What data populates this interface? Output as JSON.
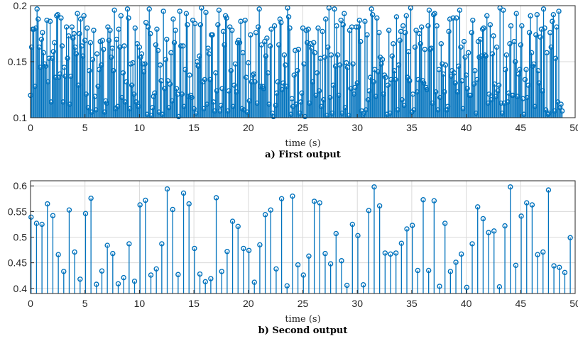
{
  "figure": {
    "colors": {
      "stem": "#0072BD",
      "axis": "#262626",
      "grid": "#d9d9d9",
      "background": "#ffffff"
    }
  },
  "chart_data": [
    {
      "type": "stem",
      "caption": "a) First output",
      "xlabel": "time (s)",
      "ylabel": "",
      "xlim": [
        0,
        50
      ],
      "ylim": [
        0.1,
        0.2
      ],
      "xticks": [
        0,
        5,
        10,
        15,
        20,
        25,
        30,
        35,
        40,
        45,
        50
      ],
      "yticks": [
        0.1,
        0.15,
        0.2
      ],
      "ytick_labels": [
        "0.1",
        "0.15",
        "0.2"
      ],
      "grid": true,
      "sample_time": 0.1,
      "y": [
        0.12,
        0.163,
        0.179,
        0.179,
        0.128,
        0.18,
        0.197,
        0.188,
        0.163,
        0.145,
        0.17,
        0.176,
        0.158,
        0.148,
        0.146,
        0.187,
        0.132,
        0.153,
        0.186,
        0.114,
        0.153,
        0.159,
        0.167,
        0.136,
        0.191,
        0.192,
        0.136,
        0.139,
        0.189,
        0.164,
        0.114,
        0.145,
        0.137,
        0.181,
        0.153,
        0.173,
        0.112,
        0.137,
        0.181,
        0.171,
        0.175,
        0.163,
        0.157,
        0.193,
        0.129,
        0.175,
        0.188,
        0.164,
        0.155,
        0.191,
        0.169,
        0.121,
        0.18,
        0.109,
        0.142,
        0.167,
        0.105,
        0.152,
        0.178,
        0.119,
        0.107,
        0.157,
        0.128,
        0.143,
        0.168,
        0.147,
        0.169,
        0.161,
        0.105,
        0.115,
        0.113,
        0.181,
        0.169,
        0.178,
        0.154,
        0.162,
        0.142,
        0.196,
        0.108,
        0.17,
        0.11,
        0.179,
        0.163,
        0.191,
        0.118,
        0.14,
        0.164,
        0.114,
        0.132,
        0.197,
        0.189,
        0.108,
        0.148,
        0.129,
        0.149,
        0.121,
        0.18,
        0.114,
        0.166,
        0.11,
        0.163,
        0.154,
        0.157,
        0.148,
        0.141,
        0.148,
        0.185,
        0.103,
        0.181,
        0.197,
        0.175,
        0.102,
        0.109,
        0.119,
        0.122,
        0.165,
        0.179,
        0.16,
        0.105,
        0.147,
        0.133,
        0.103,
        0.195,
        0.126,
        0.152,
        0.17,
        0.133,
        0.109,
        0.13,
        0.158,
        0.115,
        0.188,
        0.167,
        0.178,
        0.126,
        0.121,
        0.101,
        0.195,
        0.164,
        0.121,
        0.164,
        0.11,
        0.143,
        0.193,
        0.183,
        0.119,
        0.138,
        0.12,
        0.118,
        0.187,
        0.108,
        0.184,
        0.104,
        0.15,
        0.146,
        0.155,
        0.183,
        0.198,
        0.132,
        0.108,
        0.134,
        0.194,
        0.112,
        0.162,
        0.157,
        0.134,
        0.174,
        0.174,
        0.114,
        0.106,
        0.14,
        0.124,
        0.183,
        0.196,
        0.106,
        0.111,
        0.126,
        0.177,
        0.165,
        0.191,
        0.189,
        0.106,
        0.124,
        0.181,
        0.142,
        0.178,
        0.11,
        0.129,
        0.148,
        0.123,
        0.167,
        0.169,
        0.167,
        0.186,
        0.108,
        0.158,
        0.107,
        0.187,
        0.136,
        0.105,
        0.149,
        0.115,
        0.174,
        0.132,
        0.138,
        0.139,
        0.132,
        0.176,
        0.113,
        0.181,
        0.197,
        0.128,
        0.165,
        0.128,
        0.126,
        0.168,
        0.155,
        0.171,
        0.14,
        0.112,
        0.164,
        0.179,
        0.104,
        0.101,
        0.182,
        0.111,
        0.122,
        0.132,
        0.165,
        0.188,
        0.185,
        0.125,
        0.131,
        0.156,
        0.147,
        0.128,
        0.198,
        0.19,
        0.18,
        0.103,
        0.117,
        0.11,
        0.138,
        0.16,
        0.112,
        0.142,
        0.161,
        0.104,
        0.114,
        0.122,
        0.18,
        0.148,
        0.101,
        0.178,
        0.167,
        0.179,
        0.113,
        0.166,
        0.162,
        0.132,
        0.167,
        0.158,
        0.12,
        0.14,
        0.18,
        0.124,
        0.153,
        0.11,
        0.177,
        0.116,
        0.154,
        0.188,
        0.102,
        0.163,
        0.198,
        0.118,
        0.156,
        0.104,
        0.129,
        0.197,
        0.146,
        0.182,
        0.156,
        0.12,
        0.147,
        0.187,
        0.104,
        0.183,
        0.193,
        0.109,
        0.149,
        0.145,
        0.102,
        0.178,
        0.126,
        0.181,
        0.148,
        0.121,
        0.127,
        0.181,
        0.131,
        0.181,
        0.187,
        0.168,
        0.106,
        0.102,
        0.104,
        0.186,
        0.107,
        0.174,
        0.116,
        0.124,
        0.136,
        0.197,
        0.192,
        0.132,
        0.143,
        0.119,
        0.189,
        0.141,
        0.176,
        0.154,
        0.148,
        0.152,
        0.121,
        0.138,
        0.136,
        0.103,
        0.129,
        0.178,
        0.104,
        0.134,
        0.155,
        0.166,
        0.142,
        0.134,
        0.19,
        0.107,
        0.147,
        0.169,
        0.177,
        0.116,
        0.182,
        0.111,
        0.176,
        0.191,
        0.136,
        0.159,
        0.133,
        0.198,
        0.105,
        0.121,
        0.107,
        0.163,
        0.178,
        0.123,
        0.134,
        0.175,
        0.166,
        0.181,
        0.133,
        0.131,
        0.161,
        0.127,
        0.125,
        0.182,
        0.196,
        0.161,
        0.162,
        0.113,
        0.192,
        0.193,
        0.123,
        0.182,
        0.107,
        0.143,
        0.118,
        0.166,
        0.148,
        0.139,
        0.123,
        0.147,
        0.107,
        0.11,
        0.177,
        0.188,
        0.137,
        0.142,
        0.189,
        0.14,
        0.131,
        0.189,
        0.123,
        0.146,
        0.196,
        0.163,
        0.133,
        0.108,
        0.168,
        0.154,
        0.138,
        0.126,
        0.158,
        0.12,
        0.12,
        0.176,
        0.187,
        0.13,
        0.142,
        0.104,
        0.134,
        0.168,
        0.154,
        0.17,
        0.155,
        0.179,
        0.18,
        0.156,
        0.155,
        0.191,
        0.113,
        0.121,
        0.183,
        0.116,
        0.157,
        0.173,
        0.13,
        0.119,
        0.163,
        0.124,
        0.129,
        0.198,
        0.113,
        0.104,
        0.196,
        0.113,
        0.143,
        0.156,
        0.114,
        0.122,
        0.166,
        0.182,
        0.12,
        0.12,
        0.168,
        0.15,
        0.193,
        0.119,
        0.139,
        0.143,
        0.165,
        0.182,
        0.117,
        0.103,
        0.134,
        0.143,
        0.118,
        0.129,
        0.176,
        0.191,
        0.158,
        0.146,
        0.148,
        0.11,
        0.174,
        0.192,
        0.142,
        0.131,
        0.172,
        0.179,
        0.124,
        0.197,
        0.18,
        0.107,
        0.158,
        0.103,
        0.104,
        0.176,
        0.163,
        0.186,
        0.192,
        0.106,
        0.153,
        0.181,
        0.114,
        0.195,
        0.109,
        0.112,
        0.106
      ]
    },
    {
      "type": "stem",
      "caption": "b) Second output",
      "xlabel": "time (s)",
      "ylabel": "",
      "xlim": [
        0,
        50
      ],
      "ylim": [
        0.39,
        0.61
      ],
      "xticks": [
        0,
        5,
        10,
        15,
        20,
        25,
        30,
        35,
        40,
        45,
        50
      ],
      "yticks": [
        0.4,
        0.45,
        0.5,
        0.55,
        0.6
      ],
      "ytick_labels": [
        "0.4",
        "0.45",
        "0.5",
        "0.55",
        "0.6"
      ],
      "grid": true,
      "x": [
        0.05,
        0.55,
        1.05,
        1.55,
        2.05,
        2.55,
        3.05,
        3.55,
        4.05,
        4.55,
        5.05,
        5.55,
        6.05,
        6.55,
        7.05,
        7.55,
        8.05,
        8.55,
        9.05,
        9.55,
        10.05,
        10.55,
        11.05,
        11.55,
        12.05,
        12.55,
        13.05,
        13.55,
        14.05,
        14.55,
        15.05,
        15.55,
        16.05,
        16.55,
        17.05,
        17.55,
        18.05,
        18.55,
        19.05,
        19.55,
        20.05,
        20.55,
        21.05,
        21.55,
        22.05,
        22.55,
        23.05,
        23.55,
        24.05,
        24.55,
        25.05,
        25.55,
        26.05,
        26.55,
        27.05,
        27.55,
        28.05,
        28.55,
        29.05,
        29.55,
        30.05,
        30.55,
        31.05,
        31.55,
        32.05,
        32.55,
        33.05,
        33.55,
        34.05,
        34.55,
        35.05,
        35.55,
        36.05,
        36.55,
        37.05,
        37.55,
        38.05,
        38.55,
        39.05,
        39.55,
        40.05,
        40.55,
        41.05,
        41.55,
        42.05,
        42.55,
        43.05,
        43.55,
        44.05,
        44.55,
        45.05,
        45.55,
        46.05,
        46.55,
        47.05,
        47.55,
        48.05,
        48.55,
        49.05,
        49.55
      ],
      "y": [
        0.539,
        0.527,
        0.525,
        0.565,
        0.542,
        0.466,
        0.433,
        0.553,
        0.471,
        0.418,
        0.546,
        0.576,
        0.408,
        0.434,
        0.484,
        0.468,
        0.409,
        0.421,
        0.487,
        0.414,
        0.563,
        0.572,
        0.426,
        0.438,
        0.487,
        0.594,
        0.554,
        0.427,
        0.586,
        0.565,
        0.478,
        0.428,
        0.413,
        0.419,
        0.577,
        0.433,
        0.472,
        0.531,
        0.521,
        0.478,
        0.474,
        0.412,
        0.485,
        0.544,
        0.553,
        0.438,
        0.575,
        0.405,
        0.58,
        0.446,
        0.426,
        0.463,
        0.57,
        0.567,
        0.468,
        0.448,
        0.507,
        0.454,
        0.406,
        0.525,
        0.503,
        0.407,
        0.552,
        0.598,
        0.561,
        0.469,
        0.467,
        0.469,
        0.488,
        0.516,
        0.523,
        0.435,
        0.573,
        0.435,
        0.571,
        0.404,
        0.527,
        0.433,
        0.451,
        0.467,
        0.402,
        0.487,
        0.559,
        0.536,
        0.509,
        0.512,
        0.403,
        0.522,
        0.598,
        0.445,
        0.541,
        0.567,
        0.563,
        0.466,
        0.471,
        0.592,
        0.444,
        0.441,
        0.431,
        0.499
      ]
    }
  ]
}
